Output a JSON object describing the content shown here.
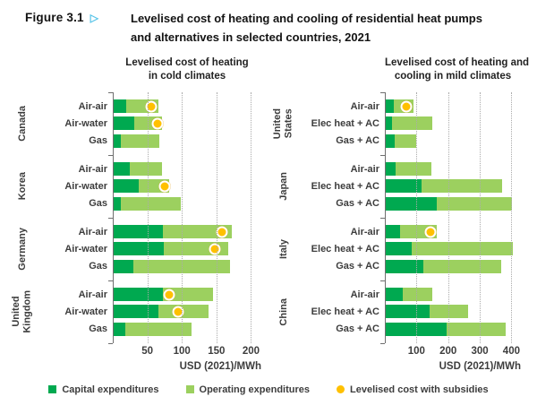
{
  "header": {
    "figure_label": "Figure 3.1",
    "marker_icon": "▷",
    "title_line1": "Levelised cost of heating and cooling of residential heat pumps",
    "title_line2": "and alternatives in selected countries, 2021"
  },
  "unit": "USD (2021)/MWh",
  "colors": {
    "capital_expenditures": "#00a950",
    "operating_expenditures": "#9cd05f",
    "subsidy_dot": "#ffc000",
    "figure_marker_cyan": "#56c3e8",
    "gridline": "#ababab",
    "axis": "#6f6f6f",
    "text": "#3d3d3d"
  },
  "legend": {
    "items": [
      {
        "label": "Capital expenditures",
        "marker": "square",
        "color": "#00a950"
      },
      {
        "label": "Operating expenditures",
        "marker": "square",
        "color": "#9cd05f"
      },
      {
        "label": "Levelised cost with subsidies",
        "marker": "circle",
        "color": "#ffc000"
      }
    ]
  },
  "chart_data": [
    {
      "type": "bar",
      "orientation": "horizontal",
      "stacked": true,
      "title": "Levelised cost of heating in cold climates",
      "title_lines": [
        "Levelised cost of heating",
        "in cold climates"
      ],
      "xlabel": "USD (2021)/MWh",
      "xticks": [
        50,
        100,
        150,
        200
      ],
      "xlim": [
        0,
        215
      ],
      "series_names": [
        "Capital expenditures",
        "Operating expenditures"
      ],
      "dot_series": "Levelised cost with subsidies",
      "groups": [
        {
          "country": "Canada",
          "rows": [
            {
              "label": "Air-air",
              "capex": 20,
              "opex": 46,
              "subsidy": 56
            },
            {
              "label": "Air-water",
              "capex": 31,
              "opex": 40,
              "subsidy": 65
            },
            {
              "label": "Gas",
              "capex": 12,
              "opex": 56,
              "subsidy": null
            }
          ]
        },
        {
          "country": "Korea",
          "rows": [
            {
              "label": "Air-air",
              "capex": 24,
              "opex": 47,
              "subsidy": null
            },
            {
              "label": "Air-water",
              "capex": 38,
              "opex": 43,
              "subsidy": 75
            },
            {
              "label": "Gas",
              "capex": 12,
              "opex": 86,
              "subsidy": null
            }
          ]
        },
        {
          "country": "Germany",
          "rows": [
            {
              "label": "Air-air",
              "capex": 73,
              "opex": 99,
              "subsidy": 158
            },
            {
              "label": "Air-water",
              "capex": 74,
              "opex": 93,
              "subsidy": 148
            },
            {
              "label": "Gas",
              "capex": 30,
              "opex": 140,
              "subsidy": null
            }
          ]
        },
        {
          "country": "United\nKingdom",
          "rows": [
            {
              "label": "Air-air",
              "capex": 73,
              "opex": 72,
              "subsidy": 82
            },
            {
              "label": "Air-water",
              "capex": 66,
              "opex": 73,
              "subsidy": 95
            },
            {
              "label": "Gas",
              "capex": 18,
              "opex": 96,
              "subsidy": null
            }
          ]
        }
      ]
    },
    {
      "type": "bar",
      "orientation": "horizontal",
      "stacked": true,
      "title": "Levelised cost of heating and cooling in mild climates",
      "title_lines": [
        "Levelised cost of heating and",
        "cooling in mild climates"
      ],
      "xlabel": "USD (2021)/MWh",
      "xticks": [
        100,
        200,
        300,
        400
      ],
      "xlim": [
        0,
        430
      ],
      "series_names": [
        "Capital expenditures",
        "Operating expenditures"
      ],
      "dot_series": "Levelised cost with subsidies",
      "groups": [
        {
          "country": "United\nStates",
          "rows": [
            {
              "label": "Air-air",
              "capex": 28,
              "opex": 62,
              "subsidy": 67
            },
            {
              "label": "Elec heat + AC",
              "capex": 23,
              "opex": 127,
              "subsidy": null
            },
            {
              "label": "Gas + AC",
              "capex": 30,
              "opex": 69,
              "subsidy": null
            }
          ]
        },
        {
          "country": "Japan",
          "rows": [
            {
              "label": "Air-air",
              "capex": 34,
              "opex": 114,
              "subsidy": null
            },
            {
              "label": "Elec heat + AC",
              "capex": 117,
              "opex": 254,
              "subsidy": null
            },
            {
              "label": "Gas + AC",
              "capex": 165,
              "opex": 237,
              "subsidy": null
            }
          ]
        },
        {
          "country": "Italy",
          "rows": [
            {
              "label": "Air-air",
              "capex": 49,
              "opex": 115,
              "subsidy": 145
            },
            {
              "label": "Elec heat + AC",
              "capex": 86,
              "opex": 318,
              "subsidy": null
            },
            {
              "label": "Gas + AC",
              "capex": 121,
              "opex": 248,
              "subsidy": null
            }
          ]
        },
        {
          "country": "China",
          "rows": [
            {
              "label": "Air-air",
              "capex": 57,
              "opex": 93,
              "subsidy": null
            },
            {
              "label": "Elec heat + AC",
              "capex": 142,
              "opex": 121,
              "subsidy": null
            },
            {
              "label": "Gas + AC",
              "capex": 196,
              "opex": 187,
              "subsidy": null
            }
          ]
        }
      ]
    }
  ]
}
